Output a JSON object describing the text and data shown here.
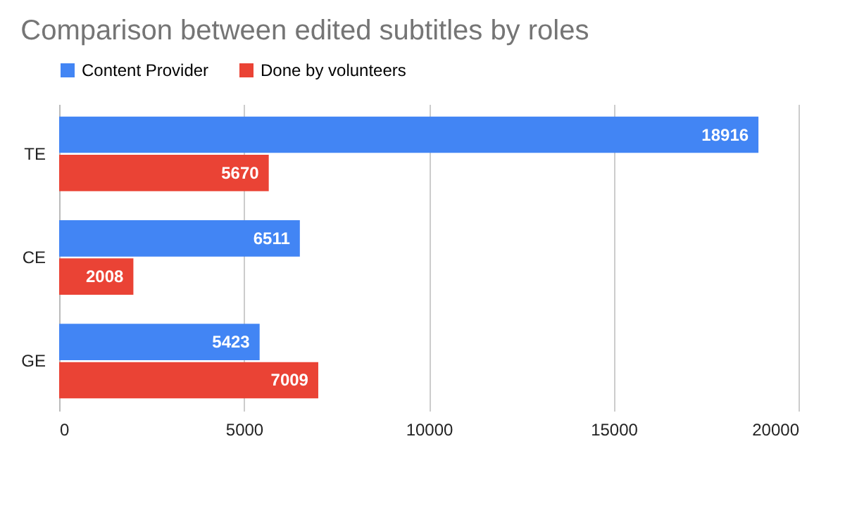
{
  "chart_data": {
    "type": "bar",
    "orientation": "horizontal",
    "title": "Comparison between edited subtitles by roles",
    "categories": [
      "TE",
      "CE",
      "GE"
    ],
    "series": [
      {
        "name": "Content Provider",
        "color": "#4285f4",
        "values": [
          18916,
          6511,
          5423
        ]
      },
      {
        "name": "Done by volunteers",
        "color": "#ea4335",
        "values": [
          5670,
          2008,
          7009
        ]
      }
    ],
    "xlim": [
      0,
      20000
    ],
    "xticks": [
      0,
      5000,
      10000,
      15000,
      20000
    ],
    "grid": "x",
    "legend": "top",
    "data_labels": true
  }
}
